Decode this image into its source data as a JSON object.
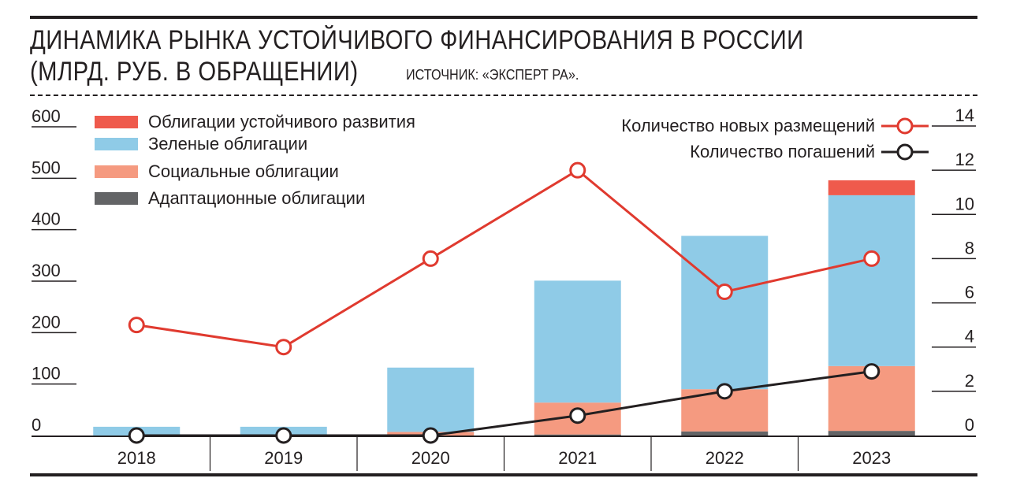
{
  "title_line1": "ДИНАМИКА РЫНКА УСТОЙЧИВОГО ФИНАНСИРОВАНИЯ В РОССИИ",
  "title_line2": "(МЛРД. РУБ. В ОБРАЩЕНИИ)",
  "source": "ИСТОЧНИК: «ЭКСПЕРТ РА».",
  "colors": {
    "sustainable": "#ef5a4c",
    "green": "#8fcbe7",
    "social": "#f59a80",
    "adaptation": "#636466",
    "new_line": "#e03a2f",
    "redemption_line": "#231f20"
  },
  "chart_data": {
    "type": "bar",
    "stacked": true,
    "categories": [
      "2018",
      "2019",
      "2020",
      "2021",
      "2022",
      "2023"
    ],
    "series": [
      {
        "name": "Адаптационные облигации",
        "color_key": "adaptation",
        "values": [
          0,
          0,
          0,
          2,
          8,
          9
        ]
      },
      {
        "name": "Социальные облигации",
        "color_key": "social",
        "values": [
          0,
          0,
          7,
          62,
          82,
          126
        ]
      },
      {
        "name": "Зеленые облигации",
        "color_key": "green",
        "values": [
          17,
          17,
          125,
          237,
          298,
          332
        ]
      },
      {
        "name": "Облигации устойчивого развития",
        "color_key": "sustainable",
        "values": [
          0,
          0,
          0,
          0,
          0,
          29
        ]
      }
    ],
    "legend_order": [
      "Облигации устойчивого развития",
      "Зеленые облигации",
      "Социальные облигации",
      "Адаптационные облигации"
    ],
    "left_axis": {
      "ticks": [
        "0",
        "100",
        "200",
        "300",
        "400",
        "500",
        "600"
      ],
      "ylim": [
        0,
        600
      ]
    },
    "right_axis": {
      "ticks": [
        "0",
        "2",
        "4",
        "6",
        "8",
        "10",
        "12",
        "14"
      ],
      "ylim": [
        0,
        14
      ]
    },
    "lines": [
      {
        "name": "Количество новых размещений",
        "color_key": "new_line",
        "values": [
          5,
          4,
          8,
          12,
          6.5,
          8
        ]
      },
      {
        "name": "Количество погашений",
        "color_key": "redemption_line",
        "values": [
          0,
          0,
          0,
          0.9,
          2,
          2.9
        ]
      }
    ],
    "legend_placement": "top-left (bars), top-right (lines)",
    "grid": false
  }
}
